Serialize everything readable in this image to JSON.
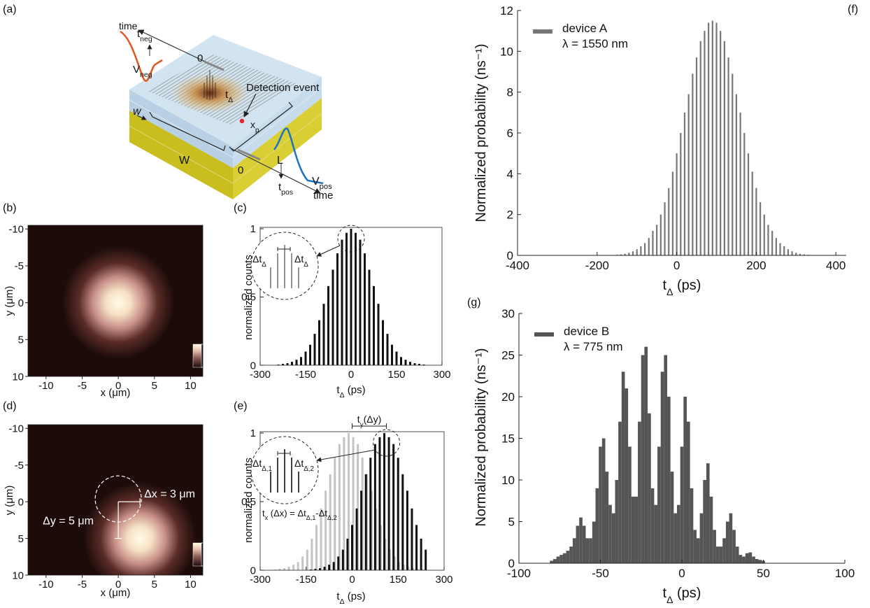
{
  "panel_a": {
    "label": "(a)",
    "annotations": [
      [
        "time"
      ],
      [
        "t",
        "neg"
      ],
      [
        "V",
        "neg"
      ],
      [
        "0"
      ],
      [
        "t",
        "Δ"
      ],
      [
        "Detection event"
      ],
      [
        "w"
      ],
      [
        "x",
        "p"
      ],
      [
        "W"
      ],
      [
        "L"
      ],
      [
        "0"
      ],
      [
        "V",
        "pos"
      ],
      [
        "t",
        "pos"
      ],
      [
        "time"
      ]
    ]
  },
  "chart_data": [
    {
      "type": "heatmap",
      "label": "(b)",
      "x_label": [
        "x (μm)"
      ],
      "y_label": [
        "y (μm)"
      ],
      "xlim": [
        -12.5,
        11.7
      ],
      "ylim": [
        -10.5,
        10
      ],
      "y_direction": "reverse",
      "xticks": [
        -10,
        -5,
        0,
        5,
        10
      ],
      "yticks": [
        -10,
        -5,
        0,
        5,
        10
      ],
      "spot_center": [
        0,
        0
      ],
      "spot_radius": 6,
      "colorbar_lim": [
        0,
        1
      ],
      "colorbar_ticks": [
        0,
        1
      ]
    },
    {
      "type": "bar",
      "label": "(c)",
      "x_label": [
        "t",
        "Δ",
        " (ps)"
      ],
      "y_label": [
        "normalized counts"
      ],
      "xlim": [
        -300,
        300
      ],
      "ylim": [
        0,
        1.01
      ],
      "xticks": [
        -300,
        -150,
        0,
        150,
        300
      ],
      "yticks": [
        0,
        0.5,
        1
      ],
      "annotations": [
        [
          "Δt",
          "Δ"
        ],
        [
          "Δt",
          "Δ"
        ]
      ],
      "x": [
        -240,
        -225,
        -210,
        -195,
        -180,
        -165,
        -150,
        -135,
        -120,
        -105,
        -90,
        -75,
        -60,
        -45,
        -30,
        -15,
        0,
        15,
        30,
        45,
        60,
        75,
        90,
        105,
        120,
        135,
        150,
        165,
        180,
        195,
        210,
        225,
        240
      ],
      "series": [
        {
          "color": "#111111",
          "values": [
            0.005,
            0.01,
            0.015,
            0.025,
            0.04,
            0.06,
            0.1,
            0.15,
            0.23,
            0.33,
            0.45,
            0.58,
            0.7,
            0.82,
            0.92,
            0.97,
            1,
            0.97,
            0.92,
            0.82,
            0.7,
            0.58,
            0.45,
            0.33,
            0.23,
            0.15,
            0.1,
            0.06,
            0.04,
            0.025,
            0.015,
            0.01,
            0.005
          ]
        }
      ]
    },
    {
      "type": "heatmap",
      "label": "(d)",
      "x_label": [
        "x (μm)"
      ],
      "y_label": [
        "y (μm)"
      ],
      "xlim": [
        -12.5,
        11.7
      ],
      "ylim": [
        -10.5,
        10
      ],
      "y_direction": "reverse",
      "xticks": [
        -10,
        -5,
        0,
        5,
        10
      ],
      "yticks": [
        -10,
        -5,
        0,
        5,
        10
      ],
      "spot_center": [
        3,
        5
      ],
      "spot_radius": 6,
      "colorbar_lim": [
        0,
        1
      ],
      "colorbar_ticks": [
        0,
        1
      ],
      "annotations": [
        [
          "Δx = 3 μm"
        ],
        [
          "Δy = 5 μm"
        ]
      ]
    },
    {
      "type": "bar",
      "label": "(e)",
      "x_label": [
        "t",
        "Δ",
        " (ps)"
      ],
      "y_label": [
        "normalized counts"
      ],
      "xlim": [
        -300,
        300
      ],
      "ylim": [
        0,
        1.01
      ],
      "xticks": [
        -300,
        -150,
        0,
        150,
        300
      ],
      "yticks": [
        0,
        0.5,
        1
      ],
      "annotations": [
        [
          "t",
          "y",
          "(Δy)"
        ],
        [
          "Δt",
          "Δ,1"
        ],
        [
          "Δt",
          "Δ,2"
        ],
        [
          "t",
          "x",
          " (Δx) = Δt",
          "Δ,1",
          "-Δt",
          "Δ,2"
        ]
      ],
      "x": [
        -255,
        -240,
        -225,
        -210,
        -195,
        -180,
        -165,
        -150,
        -135,
        -120,
        -105,
        -90,
        -75,
        -60,
        -45,
        -30,
        -15,
        0,
        15,
        30,
        45,
        60,
        75,
        90,
        105,
        120,
        135,
        150,
        165,
        180,
        195,
        210,
        225,
        240
      ],
      "series": [
        {
          "color": "#c4c4c4",
          "values": [
            null,
            0.005,
            0.01,
            0.015,
            0.025,
            0.04,
            0.06,
            0.1,
            0.15,
            0.23,
            0.33,
            0.45,
            0.58,
            0.7,
            0.82,
            0.92,
            0.97,
            1,
            0.97,
            0.92,
            0.82,
            0.7,
            0.58,
            0.45,
            0.33,
            0.23,
            0.15,
            0.1,
            0.06,
            0.04,
            0.025,
            0.015,
            0.01,
            0.005
          ]
        },
        {
          "color": "#111111",
          "values": [
            null,
            null,
            null,
            null,
            null,
            null,
            null,
            null,
            0.005,
            0.01,
            0.015,
            0.025,
            0.04,
            0.06,
            0.1,
            0.15,
            0.23,
            0.33,
            0.45,
            0.58,
            0.7,
            0.82,
            0.92,
            0.97,
            1,
            0.97,
            0.92,
            0.82,
            0.7,
            0.58,
            0.45,
            0.33,
            0.23,
            0.15
          ]
        }
      ]
    },
    {
      "type": "bar",
      "label": "(f)",
      "x_label": [
        "t",
        "Δ",
        " (ps)"
      ],
      "y_label": [
        "Normalized probability (ns⁻¹)"
      ],
      "xlim": [
        -400,
        426
      ],
      "ylim": [
        0,
        12
      ],
      "xticks": [
        -400,
        -200,
        0,
        200,
        400
      ],
      "yticks": [
        0,
        2,
        4,
        6,
        8,
        10,
        12
      ],
      "legend_note": "λ = 1550 nm",
      "x": [
        -150,
        -140,
        -130,
        -120,
        -110,
        -100,
        -90,
        -80,
        -70,
        -60,
        -50,
        -40,
        -30,
        -20,
        -10,
        0,
        10,
        20,
        30,
        40,
        50,
        60,
        70,
        80,
        90,
        100,
        110,
        120,
        130,
        140,
        150,
        160,
        170,
        180,
        190,
        200,
        210,
        220,
        230,
        240,
        250,
        260,
        270,
        280,
        290,
        300,
        310,
        320,
        330
      ],
      "series": [
        {
          "name": "device A",
          "color": "#777777",
          "values": [
            0.03,
            0.05,
            0.08,
            0.13,
            0.2,
            0.3,
            0.45,
            0.6,
            0.85,
            1.2,
            1.5,
            2.0,
            2.6,
            3.3,
            4.1,
            5.0,
            6.0,
            7.0,
            7.9,
            8.9,
            9.7,
            10.5,
            11.0,
            11.4,
            11.5,
            11.4,
            11.0,
            10.5,
            9.7,
            8.9,
            7.9,
            7.0,
            6.0,
            5.0,
            4.1,
            3.3,
            2.6,
            2.0,
            1.5,
            1.2,
            0.85,
            0.6,
            0.45,
            0.3,
            0.2,
            0.13,
            0.08,
            0.05,
            0.03
          ]
        }
      ]
    },
    {
      "type": "bar",
      "label": "(g)",
      "x_label": [
        "t",
        "Δ",
        " (ps)"
      ],
      "y_label": [
        "Normalized probability (ns⁻¹)"
      ],
      "xlim": [
        -100,
        100
      ],
      "ylim": [
        0,
        30
      ],
      "xticks": [
        -100,
        -50,
        0,
        50,
        100
      ],
      "yticks": [
        0,
        5,
        10,
        15,
        20,
        25,
        30
      ],
      "legend_note": "λ = 775 nm",
      "x": [
        -80,
        -78,
        -76,
        -74,
        -72,
        -70,
        -68,
        -66,
        -64,
        -62,
        -60,
        -58,
        -56,
        -54,
        -52,
        -50,
        -48,
        -46,
        -44,
        -42,
        -40,
        -38,
        -36,
        -34,
        -32,
        -30,
        -28,
        -26,
        -24,
        -22,
        -20,
        -18,
        -16,
        -14,
        -12,
        -10,
        -8,
        -6,
        -4,
        -2,
        0,
        2,
        4,
        6,
        8,
        10,
        12,
        14,
        16,
        18,
        20,
        22,
        24,
        26,
        28,
        30,
        32,
        34,
        36,
        38,
        40,
        42,
        44,
        46,
        48,
        50
      ],
      "series": [
        {
          "name": "device B",
          "color": "#555555",
          "values": [
            0.3,
            0.5,
            0.8,
            1,
            1.2,
            1.5,
            2,
            3,
            4.5,
            5.5,
            4.5,
            3,
            3,
            5,
            9,
            14,
            15,
            11,
            7,
            6,
            10,
            17,
            23,
            21,
            14,
            8,
            8,
            17,
            25,
            26,
            18,
            9,
            7,
            14,
            23,
            25,
            20,
            11,
            6,
            7,
            14,
            20,
            17,
            9,
            4,
            3,
            6,
            10,
            12,
            8,
            4,
            2,
            2,
            3,
            5,
            6,
            4,
            2,
            1,
            0.8,
            1.2,
            1.3,
            0.8,
            0.5,
            0.4,
            0.3
          ]
        }
      ]
    }
  ]
}
